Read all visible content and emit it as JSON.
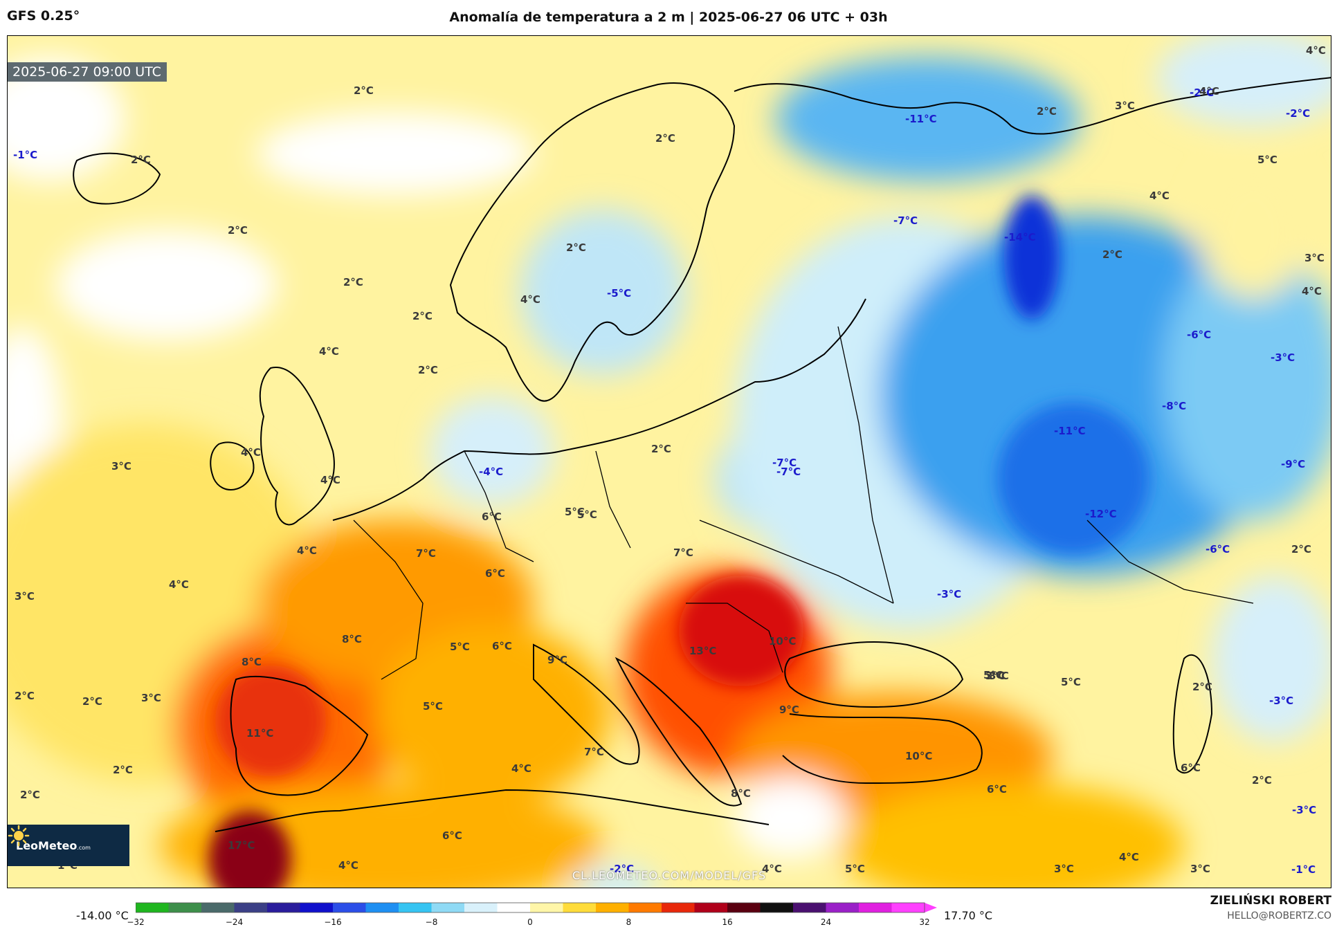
{
  "header": {
    "model": "GFS 0.25°",
    "title": "Anomalía de temperatura a 2 m | 2025-06-27 06 UTC + 03h"
  },
  "map": {
    "timestamp": "2025-06-27 09:00 UTC",
    "watermark": "CL.LEOMETEO.COM/MODEL/GFS",
    "logo": {
      "name": "LeoMeteo",
      "suffix": ".com"
    },
    "labels": [
      {
        "text": "2°C",
        "sign": "pos"
      },
      {
        "text": "-1°C",
        "sign": "neg"
      },
      {
        "text": "2°C",
        "sign": "pos"
      },
      {
        "text": "2°C",
        "sign": "pos"
      },
      {
        "text": "2°C",
        "sign": "pos"
      },
      {
        "text": "2°C",
        "sign": "pos"
      },
      {
        "text": "4°C",
        "sign": "pos"
      },
      {
        "text": "2°C",
        "sign": "pos"
      },
      {
        "text": "4°C",
        "sign": "pos"
      },
      {
        "text": "3°C",
        "sign": "pos"
      },
      {
        "text": "4°C",
        "sign": "pos"
      },
      {
        "text": "4°C",
        "sign": "pos"
      },
      {
        "text": "4°C",
        "sign": "pos"
      },
      {
        "text": "3°C",
        "sign": "pos"
      },
      {
        "text": "2°C",
        "sign": "pos"
      },
      {
        "text": "2°C",
        "sign": "pos"
      },
      {
        "text": "3°C",
        "sign": "pos"
      },
      {
        "text": "2°C",
        "sign": "pos"
      },
      {
        "text": "2°C",
        "sign": "pos"
      },
      {
        "text": "1°C",
        "sign": "pos"
      },
      {
        "text": "17°C",
        "sign": "pos"
      },
      {
        "text": "4°C",
        "sign": "pos"
      },
      {
        "text": "8°C",
        "sign": "pos"
      },
      {
        "text": "11°C",
        "sign": "pos"
      },
      {
        "text": "8°C",
        "sign": "pos"
      },
      {
        "text": "5°C",
        "sign": "pos"
      },
      {
        "text": "6°C",
        "sign": "pos"
      },
      {
        "text": "7°C",
        "sign": "pos"
      },
      {
        "text": "6°C",
        "sign": "pos"
      },
      {
        "text": "5°C",
        "sign": "pos"
      },
      {
        "text": "5°C",
        "sign": "pos"
      },
      {
        "text": "2°C",
        "sign": "pos"
      },
      {
        "text": "2°C",
        "sign": "pos"
      },
      {
        "text": "4°C",
        "sign": "pos"
      },
      {
        "text": "-5°C",
        "sign": "neg"
      },
      {
        "text": "-4°C",
        "sign": "neg"
      },
      {
        "text": "2°C",
        "sign": "pos"
      },
      {
        "text": "5°C",
        "sign": "pos"
      },
      {
        "text": "6°C",
        "sign": "pos"
      },
      {
        "text": "7°C",
        "sign": "pos"
      },
      {
        "text": "9°C",
        "sign": "pos"
      },
      {
        "text": "7°C",
        "sign": "pos"
      },
      {
        "text": "4°C",
        "sign": "pos"
      },
      {
        "text": "6°C",
        "sign": "pos"
      },
      {
        "text": "-2°C",
        "sign": "neg"
      },
      {
        "text": "4°C",
        "sign": "pos"
      },
      {
        "text": "5°C",
        "sign": "pos"
      },
      {
        "text": "8°C",
        "sign": "pos"
      },
      {
        "text": "13°C",
        "sign": "pos"
      },
      {
        "text": "10°C",
        "sign": "pos"
      },
      {
        "text": "9°C",
        "sign": "pos"
      },
      {
        "text": "10°C",
        "sign": "pos"
      },
      {
        "text": "6°C",
        "sign": "pos"
      },
      {
        "text": "5°C",
        "sign": "pos"
      },
      {
        "text": "5°C",
        "sign": "pos"
      },
      {
        "text": "2°C",
        "sign": "pos"
      },
      {
        "text": "-2°C",
        "sign": "neg"
      },
      {
        "text": "2°C",
        "sign": "pos"
      },
      {
        "text": "3°C",
        "sign": "pos"
      },
      {
        "text": "-7°C",
        "sign": "neg"
      },
      {
        "text": "-11°C",
        "sign": "neg"
      },
      {
        "text": "-7°C",
        "sign": "neg"
      },
      {
        "text": "-14°C",
        "sign": "neg"
      },
      {
        "text": "-11°C",
        "sign": "neg"
      },
      {
        "text": "-12°C",
        "sign": "neg"
      },
      {
        "text": "-3°C",
        "sign": "neg"
      },
      {
        "text": "3°C",
        "sign": "pos"
      },
      {
        "text": "3°C",
        "sign": "pos"
      },
      {
        "text": "5°C",
        "sign": "pos"
      },
      {
        "text": "4°C",
        "sign": "pos"
      },
      {
        "text": "2°C",
        "sign": "pos"
      },
      {
        "text": "-2°C",
        "sign": "neg"
      },
      {
        "text": "4°C",
        "sign": "pos"
      },
      {
        "text": "3°C",
        "sign": "pos"
      },
      {
        "text": "-7°C",
        "sign": "neg"
      },
      {
        "text": "4°C",
        "sign": "pos"
      },
      {
        "text": "4°C",
        "sign": "pos"
      },
      {
        "text": "-6°C",
        "sign": "neg"
      },
      {
        "text": "-3°C",
        "sign": "neg"
      },
      {
        "text": "-8°C",
        "sign": "neg"
      },
      {
        "text": "-9°C",
        "sign": "neg"
      },
      {
        "text": "-6°C",
        "sign": "neg"
      },
      {
        "text": "2°C",
        "sign": "pos"
      },
      {
        "text": "2°C",
        "sign": "pos"
      },
      {
        "text": "-3°C",
        "sign": "neg"
      },
      {
        "text": "6°C",
        "sign": "pos"
      },
      {
        "text": "-3°C",
        "sign": "neg"
      },
      {
        "text": "4°C",
        "sign": "pos"
      },
      {
        "text": "3°C",
        "sign": "pos"
      },
      {
        "text": "3°C",
        "sign": "pos"
      },
      {
        "text": "-1°C",
        "sign": "neg"
      }
    ]
  },
  "colorbar": {
    "min_label": "-14.00 °C",
    "max_label": "17.70 °C",
    "range": [
      -32,
      32
    ],
    "ticks": [
      "−32",
      "−24",
      "−16",
      "−8",
      "0",
      "8",
      "16",
      "24",
      "32"
    ],
    "colors": [
      "#1fb61f",
      "#3d8f4a",
      "#4a6a6a",
      "#3b3f86",
      "#2a1d9c",
      "#1010cc",
      "#2b4ee8",
      "#1e8ff2",
      "#35c4f2",
      "#8fdaf5",
      "#d9f1fb",
      "#ffffff",
      "#fff6a8",
      "#ffdc3a",
      "#ffb000",
      "#ff7a00",
      "#e8280a",
      "#b0001a",
      "#5a0010",
      "#101010",
      "#4a1070",
      "#9a20c8",
      "#e020e0",
      "#ff40ff"
    ]
  },
  "credits": {
    "author": "ZIELIŃSKI ROBERT",
    "email": "HELLO@ROBERTZ.CO"
  }
}
